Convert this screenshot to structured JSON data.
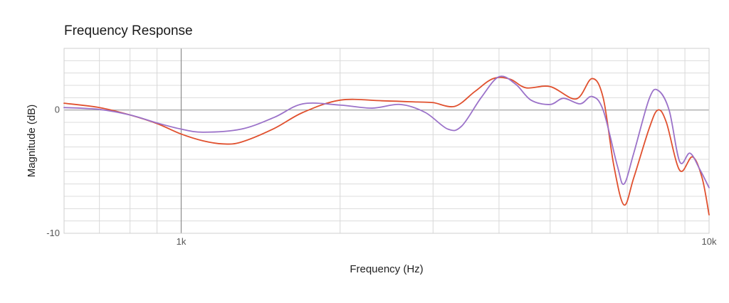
{
  "chart_data": {
    "type": "line",
    "title": "Frequency Response",
    "xlabel": "Frequency (Hz)",
    "ylabel": "Magnitude (dB)",
    "x_scale": "log",
    "xlim": [
      600,
      10000
    ],
    "ylim": [
      -10,
      5
    ],
    "x_ticks": [
      {
        "value": 1000,
        "label": "1k"
      },
      {
        "value": 10000,
        "label": "10k"
      }
    ],
    "y_ticks": [
      {
        "value": 0,
        "label": "0"
      },
      {
        "value": -10,
        "label": "-10"
      }
    ],
    "grid": true,
    "legend": "none",
    "series": [
      {
        "color": "#e0502e",
        "points": [
          [
            600,
            0.55
          ],
          [
            700,
            0.2
          ],
          [
            800,
            -0.4
          ],
          [
            900,
            -1.1
          ],
          [
            1000,
            -1.95
          ],
          [
            1100,
            -2.5
          ],
          [
            1200,
            -2.75
          ],
          [
            1300,
            -2.6
          ],
          [
            1500,
            -1.5
          ],
          [
            1700,
            -0.2
          ],
          [
            2000,
            0.8
          ],
          [
            2400,
            0.75
          ],
          [
            2800,
            0.65
          ],
          [
            3000,
            0.6
          ],
          [
            3300,
            0.3
          ],
          [
            3600,
            1.5
          ],
          [
            3900,
            2.55
          ],
          [
            4200,
            2.5
          ],
          [
            4500,
            1.8
          ],
          [
            5000,
            1.9
          ],
          [
            5600,
            0.9
          ],
          [
            6000,
            2.55
          ],
          [
            6300,
            1.0
          ],
          [
            6600,
            -4.5
          ],
          [
            6900,
            -7.7
          ],
          [
            7200,
            -5.5
          ],
          [
            7700,
            -1.5
          ],
          [
            8000,
            0.0
          ],
          [
            8300,
            -1.0
          ],
          [
            8800,
            -4.9
          ],
          [
            9300,
            -3.8
          ],
          [
            9700,
            -5.5
          ],
          [
            10000,
            -8.5
          ]
        ]
      },
      {
        "color": "#9b72c9",
        "points": [
          [
            600,
            0.2
          ],
          [
            700,
            0.05
          ],
          [
            800,
            -0.4
          ],
          [
            900,
            -1.05
          ],
          [
            1000,
            -1.55
          ],
          [
            1100,
            -1.8
          ],
          [
            1300,
            -1.55
          ],
          [
            1500,
            -0.6
          ],
          [
            1700,
            0.5
          ],
          [
            2000,
            0.4
          ],
          [
            2300,
            0.15
          ],
          [
            2600,
            0.45
          ],
          [
            2900,
            -0.2
          ],
          [
            3200,
            -1.55
          ],
          [
            3400,
            -1.3
          ],
          [
            3700,
            1.0
          ],
          [
            4000,
            2.7
          ],
          [
            4300,
            2.1
          ],
          [
            4600,
            0.8
          ],
          [
            5000,
            0.45
          ],
          [
            5300,
            0.95
          ],
          [
            5700,
            0.5
          ],
          [
            6000,
            1.1
          ],
          [
            6300,
            0.0
          ],
          [
            6700,
            -4.5
          ],
          [
            6900,
            -6.0
          ],
          [
            7200,
            -3.5
          ],
          [
            7700,
            0.9
          ],
          [
            8000,
            1.6
          ],
          [
            8400,
            0.0
          ],
          [
            8800,
            -4.2
          ],
          [
            9200,
            -3.5
          ],
          [
            9600,
            -4.8
          ],
          [
            10000,
            -6.3
          ]
        ]
      }
    ]
  }
}
